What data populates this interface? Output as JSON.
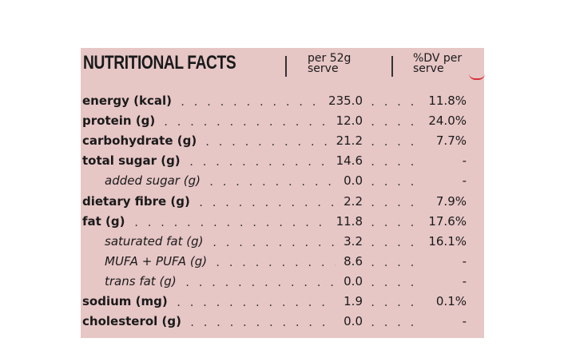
{
  "header": {
    "title": "NUTRITIONAL FACTS",
    "col1_line1": "per 52g",
    "col1_line2": "serve",
    "col2_line1": "%DV per",
    "col2_line2": "serve"
  },
  "rows": [
    {
      "name": "energy (kcal)",
      "value": "235.0",
      "dv": "11.8%",
      "sub": false
    },
    {
      "name": "protein (g)",
      "value": "12.0",
      "dv": "24.0%",
      "sub": false
    },
    {
      "name": "carbohydrate (g)",
      "value": "21.2",
      "dv": "7.7%",
      "sub": false
    },
    {
      "name": "total sugar (g)",
      "value": "14.6",
      "dv": "-",
      "sub": false
    },
    {
      "name": "added sugar (g)",
      "value": "0.0",
      "dv": "-",
      "sub": true
    },
    {
      "name": "dietary fibre (g)",
      "value": "2.2",
      "dv": "7.9%",
      "sub": false
    },
    {
      "name": "fat (g)",
      "value": "11.8",
      "dv": "17.6%",
      "sub": false
    },
    {
      "name": "saturated fat (g)",
      "value": "3.2",
      "dv": "16.1%",
      "sub": true
    },
    {
      "name": "MUFA + PUFA (g)",
      "value": "8.6",
      "dv": "-",
      "sub": true
    },
    {
      "name": "trans fat (g)",
      "value": "0.0",
      "dv": "-",
      "sub": true
    },
    {
      "name": "sodium (mg)",
      "value": "1.9",
      "dv": "0.1%",
      "sub": false
    },
    {
      "name": "cholesterol (g)",
      "value": "0.0",
      "dv": "-",
      "sub": false
    }
  ],
  "colors": {
    "background": "#e7c6c6",
    "text": "#1a1a1a",
    "accent_mark": "#d8313a"
  }
}
